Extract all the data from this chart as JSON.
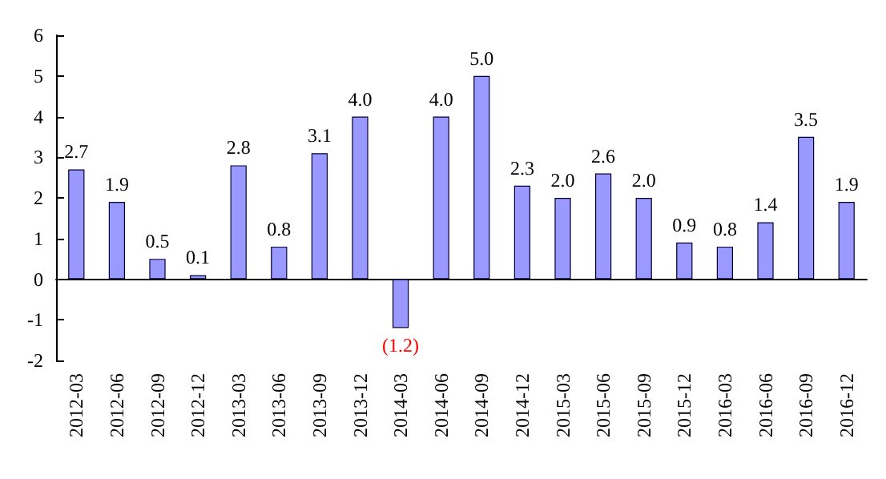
{
  "chart_data": {
    "type": "bar",
    "categories": [
      "2012-03",
      "2012-06",
      "2012-09",
      "2012-12",
      "2013-03",
      "2013-06",
      "2013-09",
      "2013-12",
      "2014-03",
      "2014-06",
      "2014-09",
      "2014-12",
      "2015-03",
      "2015-06",
      "2015-09",
      "2015-12",
      "2016-03",
      "2016-06",
      "2016-09",
      "2016-12"
    ],
    "values": [
      2.7,
      1.9,
      0.5,
      0.1,
      2.8,
      0.8,
      3.1,
      4.0,
      -1.2,
      4.0,
      5.0,
      2.3,
      2.0,
      2.6,
      2.0,
      0.9,
      0.8,
      1.4,
      3.5,
      1.9
    ],
    "value_labels": [
      "2.7",
      "1.9",
      "0.5",
      "0.1",
      "2.8",
      "0.8",
      "3.1",
      "4.0",
      "(1.2)",
      "4.0",
      "5.0",
      "2.3",
      "2.0",
      "2.6",
      "2.0",
      "0.9",
      "0.8",
      "1.4",
      "3.5",
      "1.9"
    ],
    "color": "#9999ff",
    "ylim": [
      -2,
      6
    ],
    "yticks": [
      -2,
      -1,
      0,
      1,
      2,
      3,
      4,
      5,
      6
    ]
  }
}
